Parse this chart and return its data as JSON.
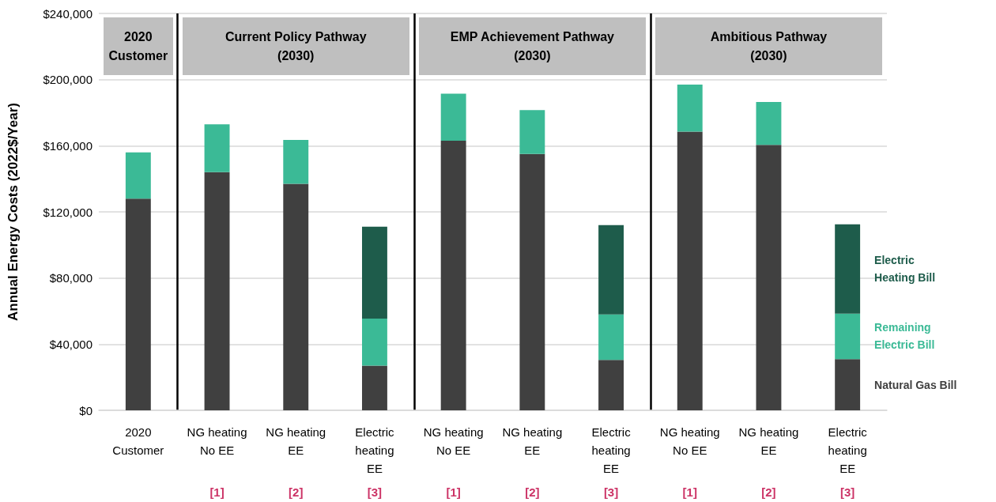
{
  "chart_data": {
    "type": "bar",
    "stacked": true,
    "ylabel": "Annual Energy Costs (2022$/Year)",
    "categories": [
      "2020\nCustomer",
      "NG heating\nNo EE",
      "NG heating\nEE",
      "Electric\nheating\nEE",
      "NG heating\nNo EE",
      "NG heating\nEE",
      "Electric\nheating\nEE",
      "NG heating\nNo EE",
      "NG heating\nEE",
      "Electric\nheating\nEE"
    ],
    "series": [
      {
        "name": "Natural Gas Bill",
        "color": "#404040",
        "values": [
          128000,
          144000,
          137000,
          27000,
          163000,
          155000,
          30500,
          168500,
          160500,
          31000
        ]
      },
      {
        "name": "Remaining Electric Bill",
        "color": "#3bba96",
        "values": [
          28000,
          29000,
          26500,
          28500,
          28500,
          26500,
          27500,
          28500,
          26000,
          27500
        ]
      },
      {
        "name": "Electric Heating Bill",
        "color": "#1e5c4b",
        "values": [
          null,
          null,
          null,
          55500,
          null,
          null,
          54000,
          null,
          null,
          54000
        ]
      }
    ],
    "ylim": [
      0,
      240000
    ],
    "yticks": [
      {
        "value": 0,
        "label": "$0"
      },
      {
        "value": 40000,
        "label": "$40,000"
      },
      {
        "value": 80000,
        "label": "$80,000"
      },
      {
        "value": 120000,
        "label": "$120,000"
      },
      {
        "value": 160000,
        "label": "$160,000"
      },
      {
        "value": 200000,
        "label": "$200,000"
      },
      {
        "value": 240000,
        "label": "$240,000"
      }
    ],
    "grid": "y",
    "annotations": [
      "2020\nCustomer",
      "Current Policy Pathway\n(2030)",
      "EMP Achievement Pathway\n(2030)",
      "Ambitious Pathway\n(2030)",
      "[1]",
      "[2]",
      "[3]",
      "[1]",
      "[2]",
      "[3]",
      "[1]",
      "[2]",
      "[3]"
    ]
  }
}
